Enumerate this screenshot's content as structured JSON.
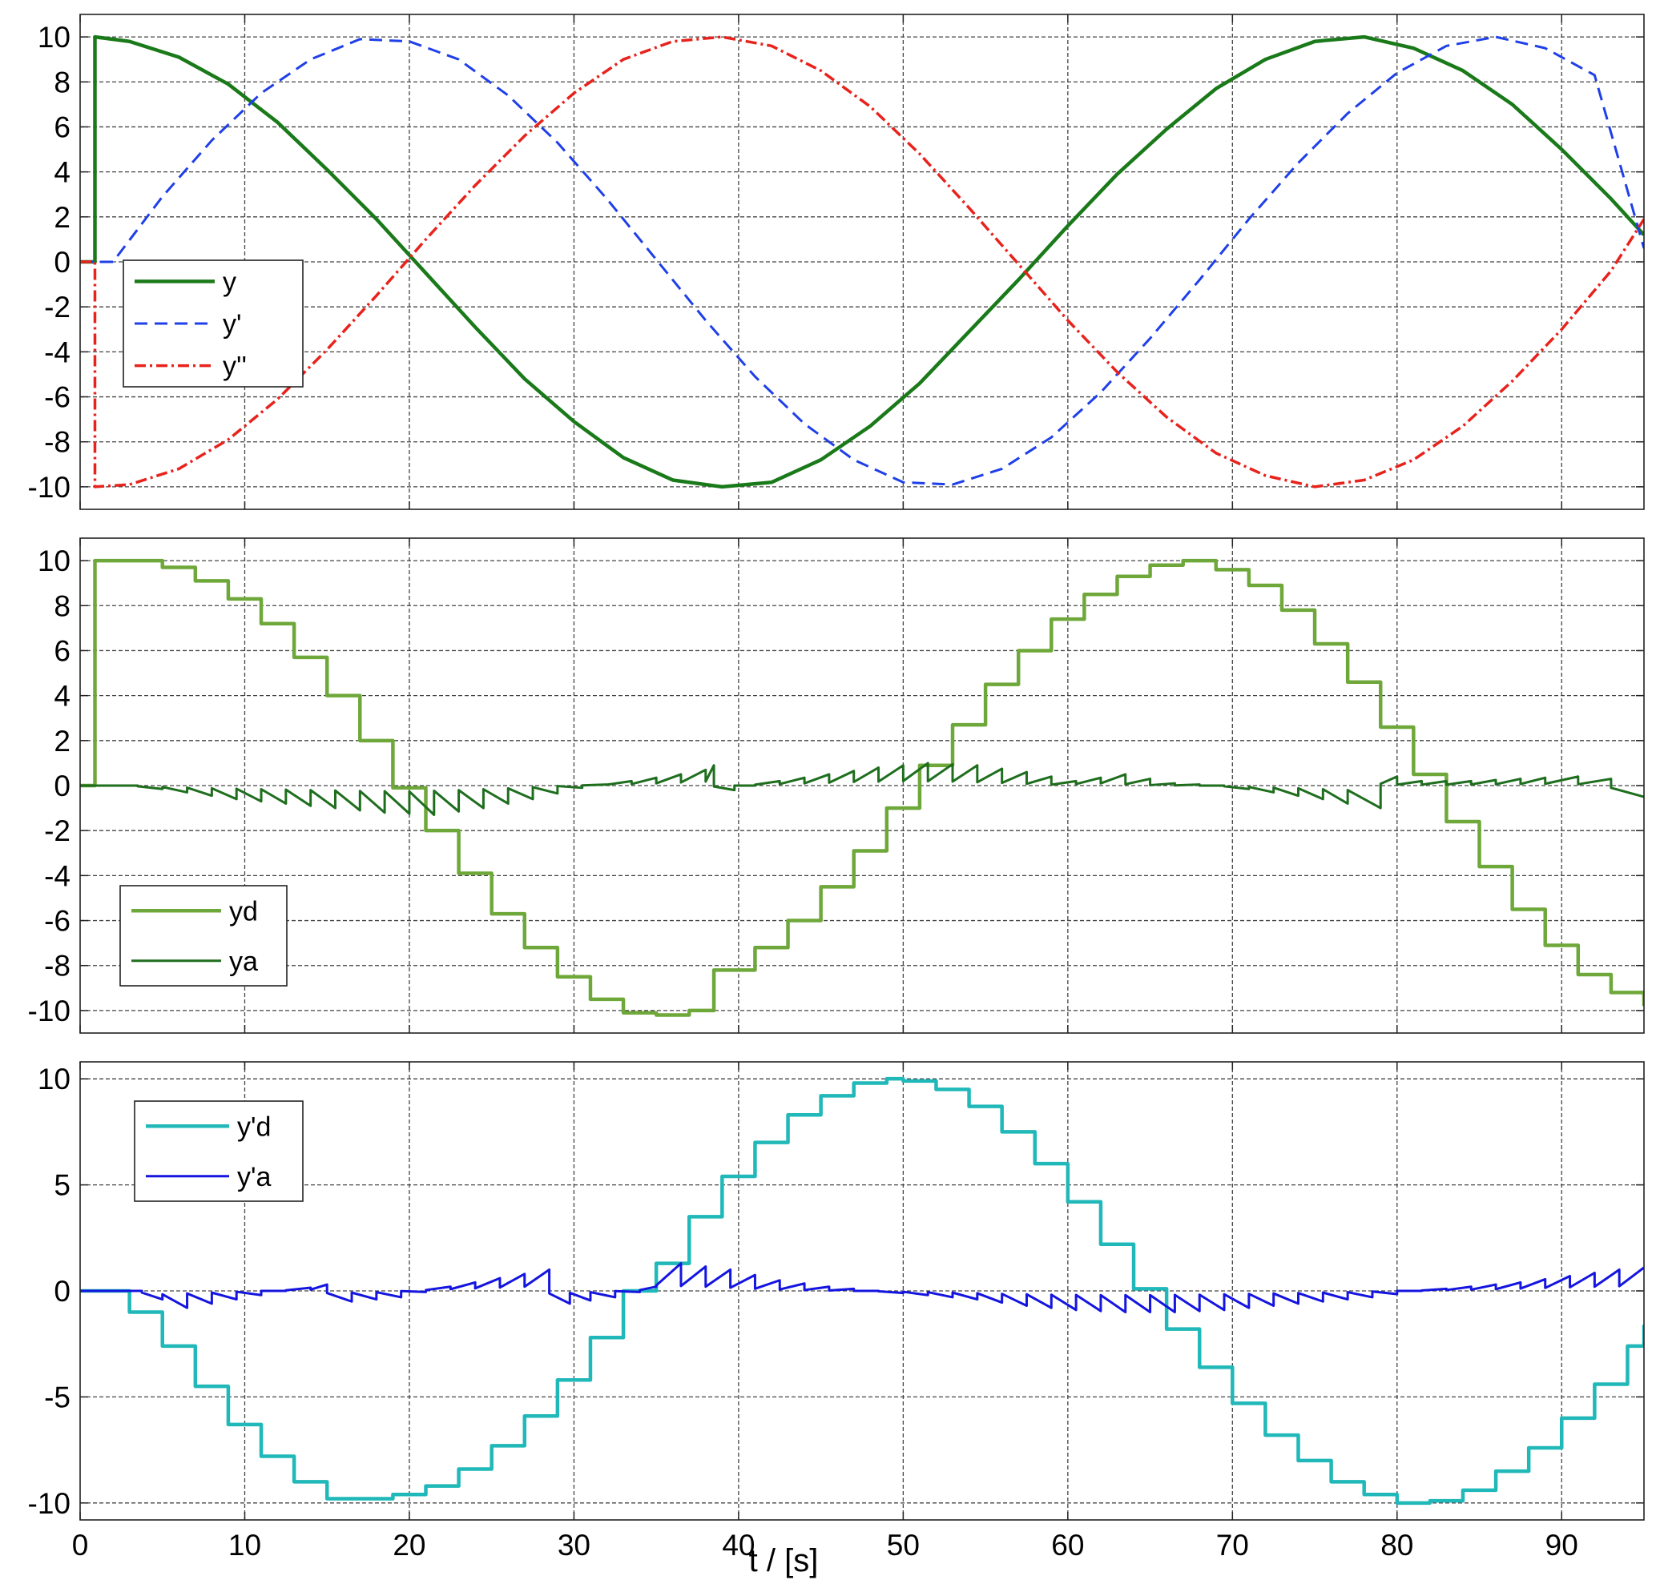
{
  "chart_data": [
    {
      "type": "line",
      "xlim": [
        0,
        95
      ],
      "ylim": [
        -11,
        11
      ],
      "yticks": [
        10,
        8,
        6,
        4,
        2,
        0,
        -2,
        -4,
        -6,
        -8,
        -10
      ],
      "yticklabels": [
        "10",
        "8",
        "6",
        "4",
        "2",
        "0",
        "-2",
        "-4",
        "-6",
        "-8",
        "-10"
      ],
      "grid": true,
      "legend_position": "middle-left",
      "series": [
        {
          "name": "y",
          "color": "#1a7a1a",
          "style": "solid",
          "width": 4.5,
          "x": [
            0.0,
            0.9,
            0.9,
            3,
            6,
            9,
            12,
            15,
            18,
            21,
            24,
            27,
            30,
            33,
            36,
            39,
            42,
            45,
            48,
            51,
            54,
            57,
            60,
            63,
            66,
            69,
            72,
            75,
            78,
            81,
            84,
            87,
            90,
            93,
            95
          ],
          "y": [
            0.0,
            0.0,
            10.0,
            9.8,
            9.1,
            7.9,
            6.2,
            4.1,
            1.9,
            -0.5,
            -2.9,
            -5.2,
            -7.1,
            -8.7,
            -9.7,
            -10.0,
            -9.8,
            -8.8,
            -7.3,
            -5.4,
            -3.1,
            -0.8,
            1.6,
            3.9,
            5.9,
            7.7,
            9.0,
            9.8,
            10.0,
            9.5,
            8.5,
            7.0,
            5.0,
            2.8,
            1.2
          ]
        },
        {
          "name": "y'",
          "color": "#1f3fe8",
          "style": "dashed",
          "width": 3,
          "x": [
            0.0,
            2.0,
            5,
            8,
            11,
            14,
            17,
            20,
            23,
            26,
            29,
            32,
            35,
            38,
            41,
            44,
            47,
            50,
            53,
            56,
            59,
            62,
            65,
            68,
            71,
            74,
            77,
            80,
            83,
            86,
            89,
            92,
            95
          ],
          "y": [
            0.0,
            0.0,
            2.9,
            5.4,
            7.5,
            9.0,
            9.9,
            9.8,
            9.0,
            7.4,
            5.3,
            2.8,
            0.1,
            -2.6,
            -5.1,
            -7.2,
            -8.8,
            -9.8,
            -9.9,
            -9.2,
            -7.8,
            -5.8,
            -3.4,
            -0.8,
            1.9,
            4.4,
            6.6,
            8.4,
            9.6,
            10.0,
            9.5,
            8.3,
            0.6
          ]
        },
        {
          "name": "y''",
          "color": "#e8221c",
          "style": "dashdot",
          "width": 3.5,
          "x": [
            0.0,
            0.9,
            0.9,
            3,
            6,
            9,
            12,
            15,
            18,
            21,
            24,
            27,
            30,
            33,
            36,
            39,
            42,
            45,
            48,
            51,
            54,
            57,
            60,
            63,
            66,
            69,
            72,
            75,
            78,
            81,
            84,
            87,
            90,
            93,
            95
          ],
          "y": [
            0.0,
            0.0,
            -10.0,
            -9.9,
            -9.2,
            -7.9,
            -6.1,
            -3.9,
            -1.5,
            1.0,
            3.4,
            5.6,
            7.5,
            9.0,
            9.8,
            10.0,
            9.6,
            8.5,
            6.9,
            4.8,
            2.4,
            -0.1,
            -2.6,
            -4.9,
            -6.9,
            -8.5,
            -9.5,
            -10.0,
            -9.7,
            -8.8,
            -7.3,
            -5.3,
            -3.0,
            -0.4,
            1.9
          ]
        }
      ]
    },
    {
      "type": "line",
      "xlim": [
        0,
        95
      ],
      "ylim": [
        -11,
        11
      ],
      "yticks": [
        10,
        8,
        6,
        4,
        2,
        0,
        -2,
        -4,
        -6,
        -8,
        -10
      ],
      "yticklabels": [
        "10",
        "8",
        "6",
        "4",
        "2",
        "0",
        "-2",
        "-4",
        "-6",
        "-8",
        "-10"
      ],
      "grid": true,
      "legend_position": "bottom-left",
      "series": [
        {
          "name": "yd",
          "color": "#6fa83a",
          "style": "steps",
          "width": 4.5,
          "x": [
            0.0,
            0.9,
            0.9,
            5,
            7,
            9,
            11,
            13,
            15,
            17,
            19,
            21,
            23,
            25,
            27,
            29,
            31,
            33,
            35,
            37,
            38.5,
            38.5,
            41,
            43,
            45,
            47,
            49,
            51,
            53,
            55,
            57,
            59,
            61,
            63,
            65,
            67,
            69,
            71,
            73,
            75,
            77,
            79,
            81,
            83,
            85,
            87,
            89,
            91,
            93,
            95
          ],
          "y": [
            0.0,
            0.0,
            10.0,
            9.7,
            9.1,
            8.3,
            7.2,
            5.7,
            4.0,
            2.0,
            -0.1,
            -2.0,
            -3.9,
            -5.7,
            -7.2,
            -8.5,
            -9.5,
            -10.1,
            -10.2,
            -10.0,
            -9.6,
            -8.2,
            -7.2,
            -6.0,
            -4.5,
            -2.9,
            -1.0,
            0.9,
            2.7,
            4.5,
            6.0,
            7.4,
            8.5,
            9.3,
            9.8,
            10.0,
            9.6,
            8.9,
            7.8,
            6.3,
            4.6,
            2.6,
            0.5,
            -1.6,
            -3.6,
            -5.5,
            -7.1,
            -8.4,
            -9.2,
            -9.8
          ]
        },
        {
          "name": "ya",
          "color": "#1e6e1e",
          "style": "sawtooth",
          "width": 3,
          "x": [
            0.0,
            2,
            5,
            8,
            11,
            14,
            17,
            20,
            23,
            26,
            29,
            32,
            35,
            38,
            38.5,
            41,
            44,
            47,
            50,
            53,
            56,
            59,
            62,
            65,
            68,
            71,
            74,
            77,
            79,
            80,
            83,
            86,
            89,
            91,
            93,
            95
          ],
          "y": [
            0.0,
            0.0,
            -0.3,
            -0.6,
            -0.8,
            -1.0,
            -1.2,
            -1.3,
            -1.0,
            -0.6,
            -0.1,
            0.2,
            0.5,
            0.9,
            -0.2,
            0.2,
            0.5,
            0.8,
            1.0,
            0.9,
            0.6,
            0.2,
            0.5,
            0.1,
            0.0,
            -0.3,
            -0.6,
            -1.0,
            0.4,
            0.2,
            0.2,
            0.3,
            0.4,
            0.3,
            -0.5,
            -0.2
          ]
        }
      ]
    },
    {
      "type": "line",
      "xlabel": "t / [s]",
      "xlim": [
        0,
        95
      ],
      "xticks": [
        0,
        10,
        20,
        30,
        40,
        50,
        60,
        70,
        80,
        90
      ],
      "xticklabels": [
        "0",
        "10",
        "20",
        "30",
        "40",
        "50",
        "60",
        "70",
        "80",
        "90"
      ],
      "ylim": [
        -10.8,
        10.8
      ],
      "yticks": [
        10,
        5,
        0,
        -5,
        -10
      ],
      "yticklabels": [
        "10",
        "5",
        "0",
        "-5",
        "-10"
      ],
      "grid": true,
      "legend_position": "top-left",
      "series": [
        {
          "name": "y'd",
          "color": "#20b8b8",
          "style": "steps",
          "width": 4.5,
          "x": [
            0.0,
            3,
            5,
            7,
            9,
            11,
            13,
            15,
            17,
            19,
            21,
            23,
            25,
            27,
            29,
            31,
            33,
            35,
            37,
            39,
            41,
            43,
            45,
            47,
            49,
            50,
            52,
            54,
            56,
            58,
            60,
            62,
            64,
            66,
            68,
            70,
            72,
            74,
            76,
            78,
            80,
            82,
            84,
            86,
            88,
            90,
            92,
            94,
            95
          ],
          "y": [
            0.0,
            -1.0,
            -2.6,
            -4.5,
            -6.3,
            -7.8,
            -9.0,
            -9.8,
            -9.8,
            -9.6,
            -9.2,
            -8.4,
            -7.3,
            -5.9,
            -4.2,
            -2.2,
            0.0,
            1.3,
            3.5,
            5.4,
            7.0,
            8.3,
            9.2,
            9.8,
            10.0,
            9.9,
            9.5,
            8.7,
            7.5,
            6.0,
            4.2,
            2.2,
            0.1,
            -1.8,
            -3.6,
            -5.3,
            -6.8,
            -8.0,
            -9.0,
            -9.6,
            -10.0,
            -9.9,
            -9.4,
            -8.5,
            -7.4,
            -6.0,
            -4.4,
            -2.6,
            -1.6
          ]
        },
        {
          "name": "y'a",
          "color": "#1515e0",
          "style": "sawtooth",
          "width": 3,
          "x": [
            0.0,
            2.5,
            5,
            8,
            11,
            14,
            15,
            18,
            21,
            24,
            27,
            28.5,
            31,
            34,
            35,
            38,
            41,
            44,
            47,
            50,
            53,
            56,
            59,
            62,
            65,
            68,
            71,
            74,
            77,
            80,
            83,
            86,
            89,
            92,
            95
          ],
          "y": [
            0.0,
            0.0,
            -0.8,
            -0.4,
            0.0,
            0.3,
            -0.5,
            -0.3,
            0.2,
            0.6,
            1.0,
            -0.6,
            -0.3,
            0.2,
            1.3,
            1.0,
            0.5,
            0.2,
            0.0,
            -0.2,
            -0.4,
            -0.7,
            -0.9,
            -1.0,
            -1.0,
            -0.9,
            -0.7,
            -0.5,
            -0.3,
            0.0,
            0.2,
            0.4,
            0.7,
            1.0,
            1.2
          ]
        }
      ]
    }
  ]
}
